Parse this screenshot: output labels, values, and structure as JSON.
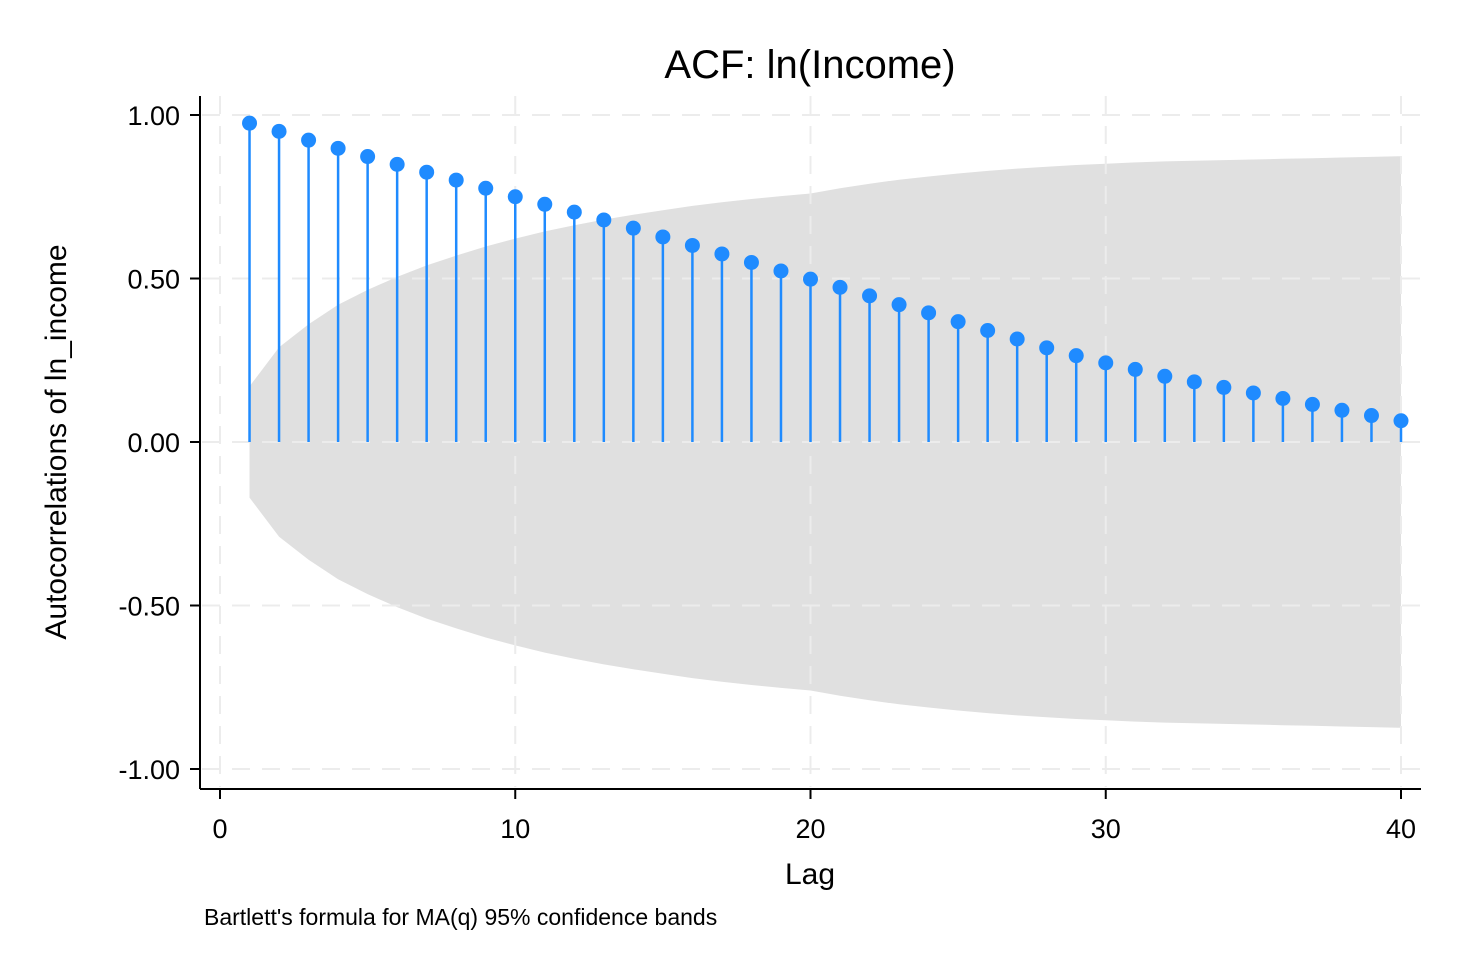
{
  "chart_data": {
    "type": "scatter",
    "style": "stem",
    "title": "ACF: ln(Income)",
    "xlabel": "Lag",
    "ylabel": "Autocorrelations of ln_income",
    "note": "Bartlett's formula for MA(q) 95% confidence bands",
    "xlim": [
      0,
      40
    ],
    "ylim": [
      -1,
      1
    ],
    "xticks": [
      0,
      10,
      20,
      30,
      40
    ],
    "xtick_labels": [
      "0",
      "10",
      "20",
      "30",
      "40"
    ],
    "yticks": [
      1,
      0.5,
      0,
      -0.5,
      -1
    ],
    "ytick_labels": [
      "1.00",
      "0.50",
      "0.00",
      "-0.50",
      "-1.00"
    ],
    "grid": true,
    "legend": "none",
    "series": [
      {
        "x": [
          1,
          2,
          3,
          4,
          5,
          6,
          7,
          8,
          9,
          10,
          11,
          12,
          13,
          14,
          15,
          16,
          17,
          18,
          19,
          20,
          21,
          22,
          23,
          24,
          25,
          26,
          27,
          28,
          29,
          30,
          31,
          32,
          33,
          34,
          35,
          36,
          37,
          38,
          39,
          40
        ],
        "values": [
          0.975,
          0.95,
          0.923,
          0.898,
          0.873,
          0.849,
          0.825,
          0.801,
          0.776,
          0.75,
          0.727,
          0.703,
          0.679,
          0.654,
          0.627,
          0.601,
          0.575,
          0.549,
          0.523,
          0.498,
          0.473,
          0.447,
          0.42,
          0.395,
          0.368,
          0.341,
          0.315,
          0.288,
          0.264,
          0.242,
          0.222,
          0.201,
          0.184,
          0.167,
          0.15,
          0.133,
          0.115,
          0.097,
          0.081,
          0.065
        ]
      }
    ],
    "confidence_band": {
      "lags": [
        1,
        2,
        3,
        4,
        5,
        6,
        7,
        8,
        9,
        10,
        11,
        12,
        13,
        14,
        15,
        16,
        17,
        18,
        19,
        20,
        21,
        22,
        23,
        24,
        25,
        26,
        27,
        28,
        29,
        30,
        31,
        32,
        33,
        34,
        35,
        36,
        37,
        38,
        39,
        40
      ],
      "upper": [
        0.17,
        0.29,
        0.36,
        0.42,
        0.465,
        0.505,
        0.54,
        0.57,
        0.598,
        0.622,
        0.644,
        0.663,
        0.68,
        0.695,
        0.709,
        0.722,
        0.733,
        0.743,
        0.752,
        0.76,
        0.776,
        0.79,
        0.802,
        0.812,
        0.821,
        0.829,
        0.836,
        0.842,
        0.847,
        0.851,
        0.855,
        0.858,
        0.86,
        0.862,
        0.864,
        0.866,
        0.868,
        0.87,
        0.872,
        0.874
      ]
    },
    "colors": {
      "series": "#1f8bff",
      "band": "#e0e0e0",
      "grid": "#ececec",
      "axis": "#000000"
    }
  }
}
